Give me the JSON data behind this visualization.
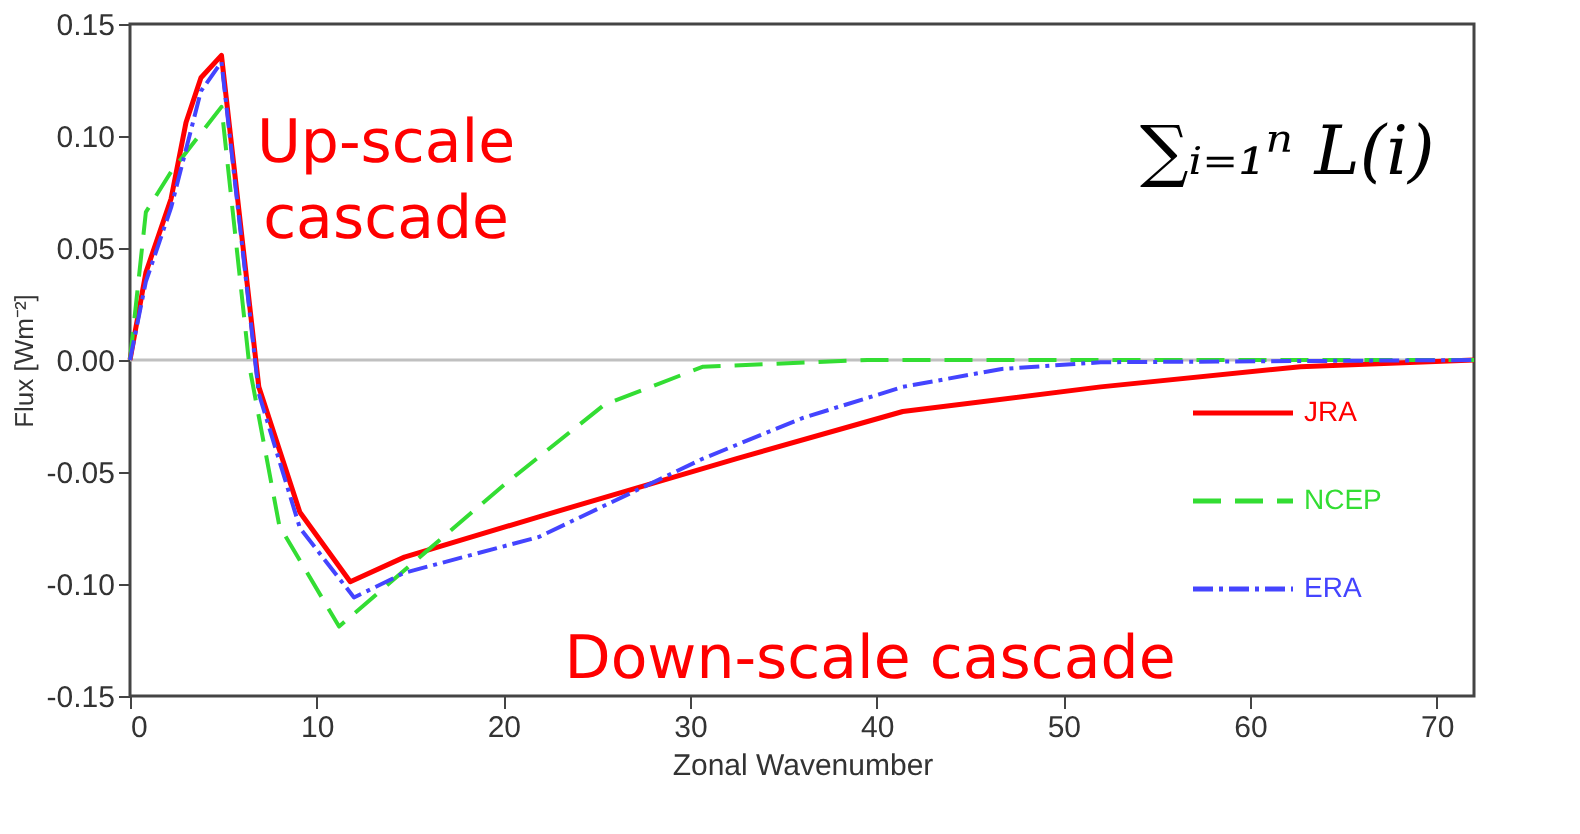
{
  "chart_data": {
    "type": "line",
    "xlabel": "Zonal Wavenumber",
    "ylabel": "Flux [Wm⁻²]",
    "xlim": [
      0,
      72
    ],
    "xticks": [
      0,
      10,
      20,
      30,
      40,
      50,
      60,
      70
    ],
    "ylim": [
      -0.15,
      0.15
    ],
    "yticks": [
      {
        "value": 0.15,
        "label": "0.15"
      },
      {
        "value": 0.1,
        "label": "0.10"
      },
      {
        "value": 0.05,
        "label": "0.05"
      },
      {
        "value": 0,
        "label": "0.00"
      },
      {
        "value": -0.05,
        "label": "-0.05"
      },
      {
        "value": -0.1,
        "label": "-0.10"
      },
      {
        "value": -0.15,
        "label": "-0.15"
      }
    ],
    "grid": false,
    "legend": "bottom right",
    "marker": "none",
    "ref_lines": [
      {
        "axis": "y",
        "value": 0,
        "color": "#c0c0c0"
      }
    ],
    "annotations": [
      "Up-scale cascade",
      "Down-scale cascade",
      "∑ᵢ₌₁ⁿ L(i)"
    ],
    "series": [
      {
        "name": "JRA",
        "color": "#ff0000",
        "line_style": "solid",
        "x": [
          0,
          0.85,
          2.2,
          3,
          3.8,
          4.9,
          6.9,
          9.1,
          11.8,
          14.7,
          21.9,
          32.5,
          41.4,
          52,
          62.7,
          72
        ],
        "values": [
          0,
          0.039,
          0.072,
          0.106,
          0.126,
          0.136,
          -0.012,
          -0.068,
          -0.099,
          -0.088,
          -0.07,
          -0.044,
          -0.023,
          -0.012,
          -0.003,
          0
        ]
      },
      {
        "name": "NCEP",
        "color": "#33dd33",
        "line_style": "dashed",
        "x": [
          0,
          0.85,
          2.2,
          4.9,
          6.4,
          8,
          11.2,
          15.8,
          20,
          25.4,
          30.7,
          39.5,
          72
        ],
        "values": [
          0,
          0.066,
          0.084,
          0.113,
          -0.003,
          -0.074,
          -0.119,
          -0.086,
          -0.056,
          -0.02,
          -0.003,
          0,
          0
        ]
      },
      {
        "name": "ERA",
        "color": "#4444ff",
        "line_style": "dashdot",
        "x": [
          0,
          0.85,
          2.2,
          3.8,
          4.9,
          6.9,
          9.1,
          12,
          14.7,
          21.9,
          30.7,
          36,
          41.4,
          46.7,
          52,
          72
        ],
        "values": [
          0,
          0.035,
          0.068,
          0.12,
          0.133,
          -0.015,
          -0.075,
          -0.106,
          -0.095,
          -0.079,
          -0.044,
          -0.026,
          -0.012,
          -0.004,
          -0.001,
          0
        ]
      }
    ]
  }
}
